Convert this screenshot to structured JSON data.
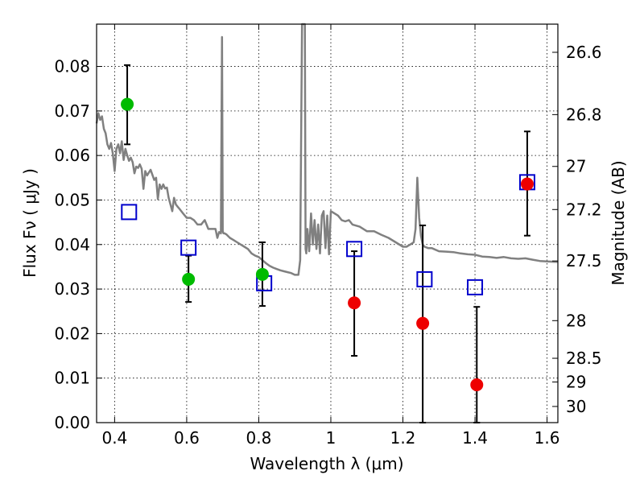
{
  "chart_data": {
    "type": "scatter",
    "xlabel": "Wavelength  λ (μm)",
    "ylabel": "Flux  Fν  ( μJy )",
    "y2label": "Magnitude (AB)",
    "xlim": [
      0.35,
      1.63
    ],
    "ylim": [
      0.0,
      0.0895
    ],
    "grid": true,
    "x_ticks": [
      0.4,
      0.6,
      0.8,
      1.0,
      1.2,
      1.4,
      1.6
    ],
    "x_tick_labels": [
      "0.4",
      "0.6",
      "0.8",
      "1",
      "1.2",
      "1.4",
      "1.6"
    ],
    "y_ticks": [
      0.0,
      0.01,
      0.02,
      0.03,
      0.04,
      0.05,
      0.06,
      0.07,
      0.08
    ],
    "y_tick_labels": [
      "0.00",
      "0.01",
      "0.02",
      "0.03",
      "0.04",
      "0.05",
      "0.06",
      "0.07",
      "0.08"
    ],
    "mag_ticks": [
      26.6,
      26.8,
      27,
      27.2,
      27.5,
      28,
      28.5,
      29,
      30
    ],
    "mag_tick_labels": [
      "26.6",
      "26.8",
      "27",
      "27.2",
      "27.5",
      "28",
      "28.5",
      "29",
      "30"
    ],
    "colors": {
      "model_line": "#808080",
      "green_points": "#00bb00",
      "red_points": "#ee0000",
      "model_squares": "#0000cc",
      "error_bars": "#000000"
    },
    "series": [
      {
        "kind": "line",
        "x": [
          0.35,
          0.355,
          0.36,
          0.365,
          0.37,
          0.375,
          0.38,
          0.385,
          0.39,
          0.395,
          0.4,
          0.405,
          0.41,
          0.415,
          0.42,
          0.425,
          0.43,
          0.435,
          0.44,
          0.445,
          0.45,
          0.455,
          0.46,
          0.465,
          0.47,
          0.475,
          0.48,
          0.485,
          0.49,
          0.5,
          0.51,
          0.515,
          0.52,
          0.525,
          0.53,
          0.535,
          0.54,
          0.545,
          0.55,
          0.56,
          0.565,
          0.57,
          0.575,
          0.58,
          0.59,
          0.6,
          0.61,
          0.62,
          0.63,
          0.64,
          0.65,
          0.66,
          0.67,
          0.68,
          0.685,
          0.69,
          0.695,
          0.698,
          0.7,
          0.702,
          0.705,
          0.71,
          0.72,
          0.73,
          0.74,
          0.75,
          0.76,
          0.77,
          0.78,
          0.79,
          0.8,
          0.81,
          0.82,
          0.83,
          0.84,
          0.85,
          0.86,
          0.87,
          0.88,
          0.89,
          0.9,
          0.91,
          0.915,
          0.92,
          0.922,
          0.925,
          0.928,
          0.93,
          0.932,
          0.935,
          0.94,
          0.945,
          0.95,
          0.955,
          0.96,
          0.965,
          0.97,
          0.975,
          0.98,
          0.985,
          0.99,
          0.995,
          1.0,
          1.01,
          1.02,
          1.03,
          1.04,
          1.05,
          1.06,
          1.08,
          1.1,
          1.12,
          1.14,
          1.16,
          1.18,
          1.2,
          1.21,
          1.22,
          1.23,
          1.235,
          1.24,
          1.245,
          1.25,
          1.255,
          1.26,
          1.27,
          1.28,
          1.3,
          1.32,
          1.34,
          1.36,
          1.38,
          1.4,
          1.42,
          1.44,
          1.46,
          1.48,
          1.5,
          1.52,
          1.54,
          1.56,
          1.58,
          1.6,
          1.62,
          1.63
        ],
        "y": [
          0.0672,
          0.0695,
          0.068,
          0.0688,
          0.066,
          0.065,
          0.0625,
          0.0615,
          0.0628,
          0.0605,
          0.0565,
          0.0615,
          0.0625,
          0.0605,
          0.0632,
          0.059,
          0.0615,
          0.06,
          0.0588,
          0.0595,
          0.0585,
          0.056,
          0.0575,
          0.0572,
          0.058,
          0.057,
          0.0525,
          0.0565,
          0.0555,
          0.0568,
          0.0545,
          0.055,
          0.0502,
          0.0535,
          0.0525,
          0.0535,
          0.0526,
          0.0528,
          0.0505,
          0.0475,
          0.0505,
          0.049,
          0.0485,
          0.048,
          0.047,
          0.046,
          0.046,
          0.0455,
          0.0445,
          0.0445,
          0.0455,
          0.0435,
          0.0435,
          0.0435,
          0.0415,
          0.0428,
          0.0425,
          0.0866,
          0.043,
          0.0425,
          0.0425,
          0.0423,
          0.0415,
          0.041,
          0.0405,
          0.04,
          0.0395,
          0.039,
          0.038,
          0.0375,
          0.0372,
          0.0365,
          0.0358,
          0.0352,
          0.0348,
          0.0345,
          0.0342,
          0.034,
          0.0338,
          0.0336,
          0.0332,
          0.0332,
          0.0365,
          0.0895,
          0.0895,
          0.0895,
          0.0895,
          0.039,
          0.038,
          0.0435,
          0.0385,
          0.047,
          0.04,
          0.0455,
          0.039,
          0.0445,
          0.038,
          0.0465,
          0.0475,
          0.0392,
          0.0465,
          0.0378,
          0.0475,
          0.047,
          0.0465,
          0.0455,
          0.0452,
          0.0455,
          0.0445,
          0.044,
          0.043,
          0.043,
          0.0422,
          0.0415,
          0.0405,
          0.0395,
          0.0395,
          0.04,
          0.0405,
          0.0435,
          0.055,
          0.046,
          0.042,
          0.04,
          0.0395,
          0.0392,
          0.0392,
          0.0385,
          0.0384,
          0.0383,
          0.038,
          0.0378,
          0.0377,
          0.0373,
          0.0372,
          0.037,
          0.0372,
          0.0369,
          0.0368,
          0.0369,
          0.0366,
          0.0363,
          0.0362,
          0.0361,
          0.0361
        ]
      },
      {
        "kind": "points",
        "marker": "circle",
        "color": "green",
        "x": [
          0.435,
          0.605,
          0.81
        ],
        "y": [
          0.0715,
          0.0322,
          0.0333
        ],
        "err_low": [
          0.0625,
          0.0271,
          0.0262
        ],
        "err_high": [
          0.0803,
          0.0375,
          0.0405
        ]
      },
      {
        "kind": "points",
        "marker": "circle",
        "color": "red",
        "x": [
          1.065,
          1.255,
          1.405,
          1.545
        ],
        "y": [
          0.0269,
          0.0223,
          0.0085,
          0.0536
        ],
        "err_low": [
          0.015,
          0.0,
          0.0,
          0.042
        ],
        "err_high": [
          0.0385,
          0.0443,
          0.026,
          0.0654
        ]
      },
      {
        "kind": "points",
        "marker": "square",
        "color": "blue",
        "x": [
          0.44,
          0.605,
          0.815,
          1.065,
          1.26,
          1.4,
          1.545
        ],
        "y": [
          0.0473,
          0.0393,
          0.0313,
          0.039,
          0.0322,
          0.0304,
          0.054
        ]
      }
    ]
  }
}
